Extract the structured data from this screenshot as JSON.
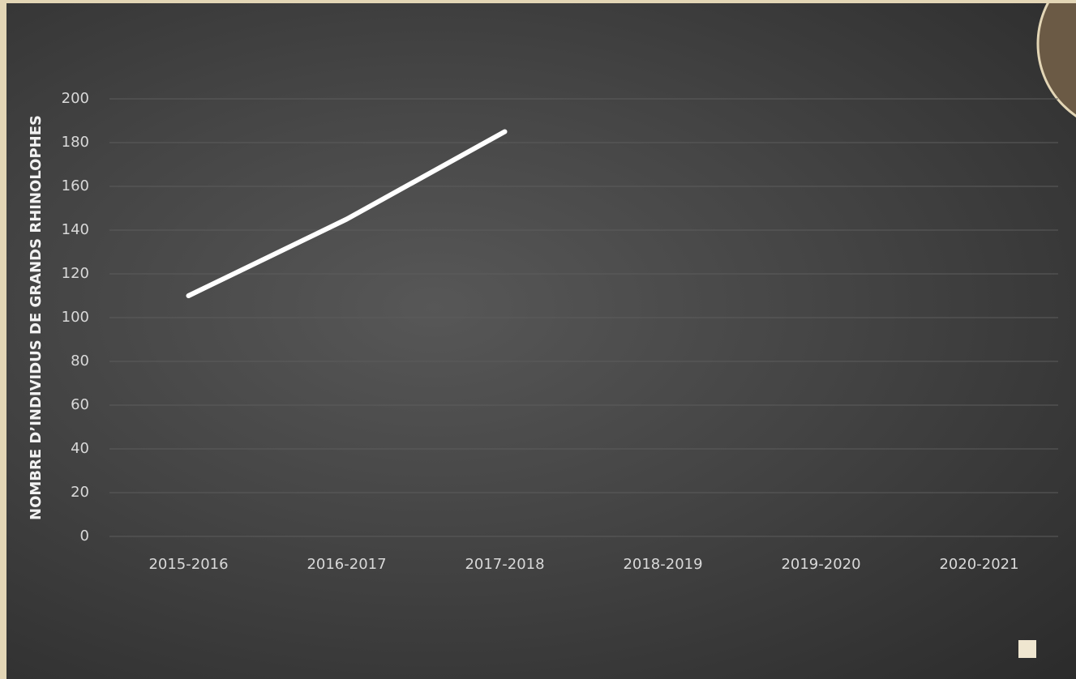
{
  "chart_data": {
    "type": "line",
    "y_label": "NOMBRE D’INDIVIDUS DE GRANDS RHINOLOPHES",
    "categories": [
      "2015-2016",
      "2016-2017",
      "2017-2018",
      "2018-2019",
      "2019-2020",
      "2020-2021"
    ],
    "series": [
      {
        "color": "#ffffff",
        "values": [
          110,
          145,
          185,
          null,
          null,
          null
        ]
      }
    ],
    "ylim": [
      0,
      200
    ],
    "yticks": [
      0,
      20,
      40,
      60,
      80,
      100,
      120,
      140,
      160,
      180,
      200
    ],
    "grid": true
  }
}
